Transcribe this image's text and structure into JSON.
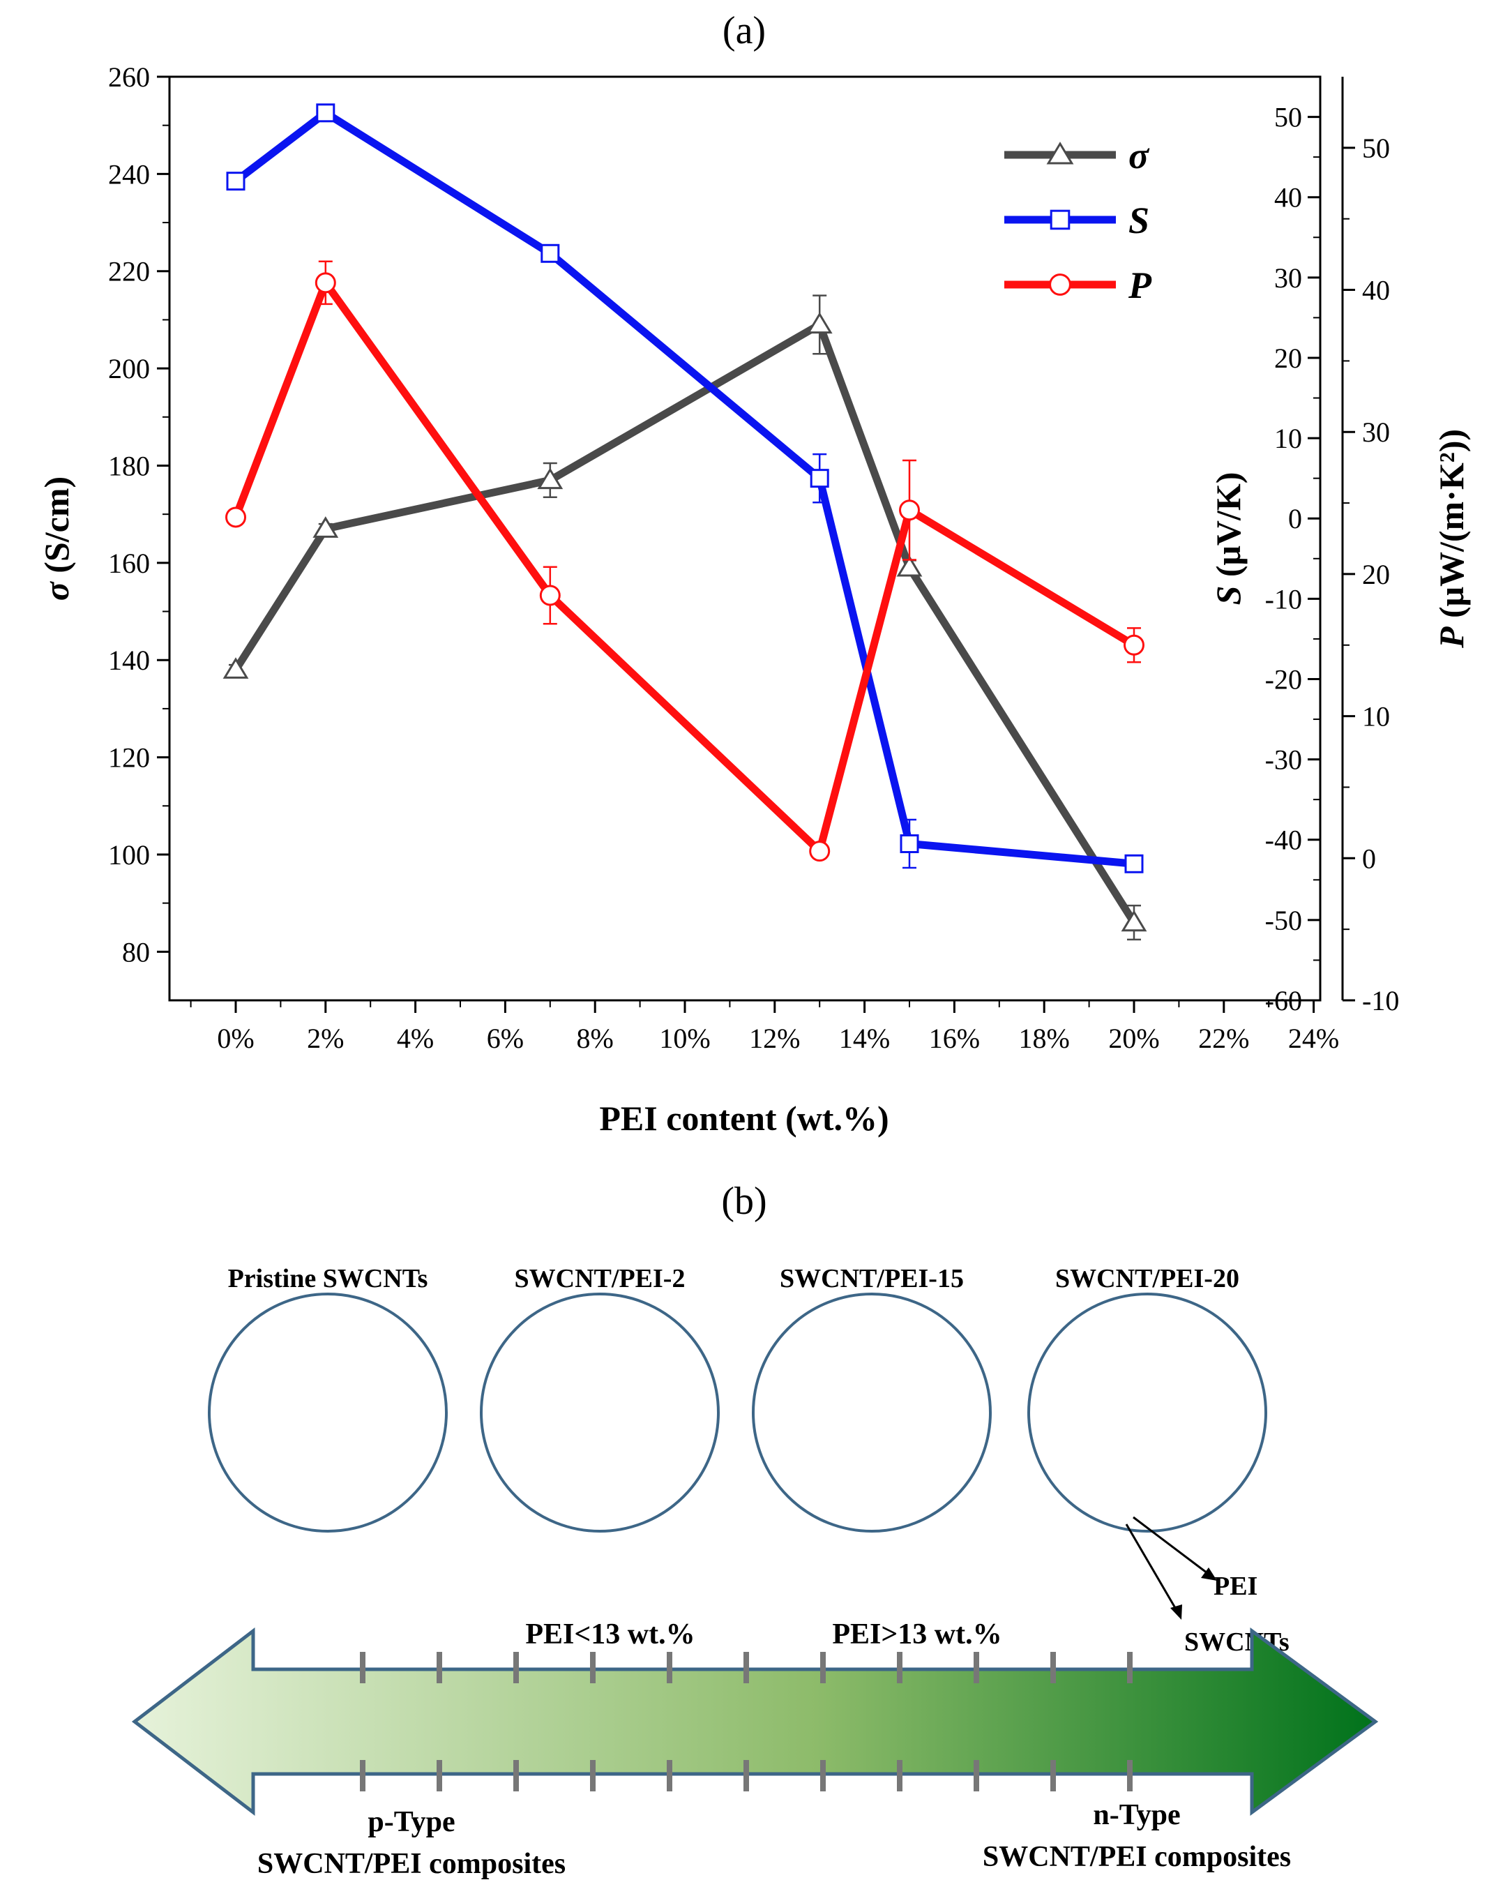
{
  "panel_a_label": "(a)",
  "panel_b_label": "(b)",
  "chart_data": {
    "type": "line",
    "xlabel": "PEI content (wt.%)",
    "x_tick_labels": [
      "0%",
      "2%",
      "4%",
      "6%",
      "8%",
      "10%",
      "12%",
      "14%",
      "16%",
      "18%",
      "20%",
      "22%",
      "24%"
    ],
    "xlim": [
      -2,
      24
    ],
    "axes": {
      "left": {
        "label_sym": "σ",
        "label_unit": " (S/cm)",
        "ylim": [
          70,
          260
        ],
        "ticks": [
          80,
          100,
          120,
          140,
          160,
          180,
          200,
          220,
          240,
          260
        ]
      },
      "right1": {
        "label_sym": "S",
        "label_unit": " (μV/K)",
        "ylim": [
          -60,
          55
        ],
        "ticks": [
          -60,
          -50,
          -40,
          -30,
          -20,
          -10,
          0,
          10,
          20,
          30,
          40,
          50
        ]
      },
      "right2": {
        "label_sym": "P",
        "label_unit": " (μW/(m·K²))",
        "ylim": [
          -10,
          55
        ],
        "ticks": [
          -10,
          0,
          10,
          20,
          30,
          40,
          50
        ]
      }
    },
    "legend_position": "top-right",
    "series": [
      {
        "name": "σ",
        "axis": "left",
        "color": "#4a4a4a",
        "marker": "triangle",
        "x": [
          0,
          2,
          7,
          13,
          15,
          20
        ],
        "y": [
          138,
          167,
          177,
          209,
          159,
          86
        ],
        "err": [
          1,
          1,
          3.5,
          6,
          1.5,
          3.5
        ]
      },
      {
        "name": "S",
        "axis": "right1",
        "color": "#0a14f0",
        "marker": "square",
        "x": [
          0,
          2,
          7,
          13,
          15,
          20
        ],
        "y": [
          42,
          50.5,
          33,
          5,
          -40.5,
          -43
        ],
        "err": [
          1,
          1,
          1,
          3,
          3,
          1
        ]
      },
      {
        "name": "P",
        "axis": "right2",
        "color": "#ff0f0f",
        "marker": "circle",
        "x": [
          0,
          2,
          7,
          13,
          15,
          20
        ],
        "y": [
          24,
          40.5,
          18.5,
          0.5,
          24.5,
          15
        ],
        "err": [
          0.5,
          1.5,
          2,
          0.5,
          3.5,
          1.2
        ]
      }
    ]
  },
  "panel_b": {
    "circle_titles": [
      "Pristine SWCNTs",
      "SWCNT/PEI-2",
      "SWCNT/PEI-15",
      "SWCNT/PEI-20"
    ],
    "pei_label": "PEI",
    "swcnt_label": "SWCNTs",
    "pei_low": "PEI<13 wt.%",
    "pei_high": "PEI>13 wt.%",
    "p_type_1": "p-Type",
    "p_type_2": "SWCNT/PEI composites",
    "n_type_1": "n-Type",
    "n_type_2": "SWCNT/PEI composites",
    "colors": {
      "tube": "#000000",
      "pei": "#1db35a",
      "circle_edge": "#3d6687",
      "arrow_start": "#e6f2da",
      "arrow_end": "#00721b"
    }
  }
}
